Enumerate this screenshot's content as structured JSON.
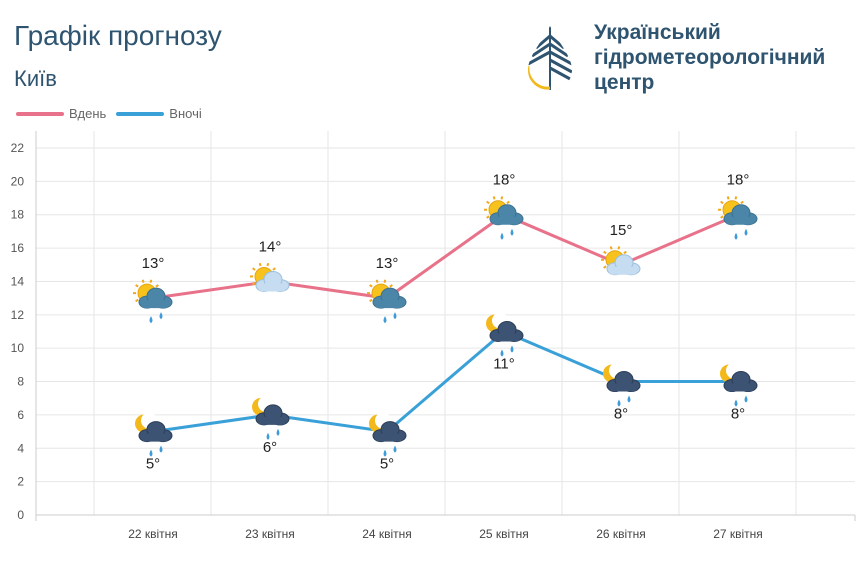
{
  "header": {
    "title": "Графік прогнозу",
    "city": "Київ",
    "org_line1": "Український",
    "org_line2": "гідрометеорологічний",
    "org_line3": "центр"
  },
  "colors": {
    "day": "#e8728a",
    "night": "#3aa0d8",
    "text": "#2f5470",
    "logo_yellow": "#f3b91c"
  },
  "chart_data": {
    "type": "line",
    "categories": [
      "22 квітня",
      "23 квітня",
      "24 квітня",
      "25 квітня",
      "26 квітня",
      "27 квітня"
    ],
    "series": [
      {
        "name": "Вдень",
        "values": [
          13,
          14,
          13,
          18,
          15,
          18
        ],
        "labels": [
          "13°",
          "14°",
          "13°",
          "18°",
          "15°",
          "18°"
        ],
        "icons": [
          "sun-cloud-rain",
          "sun-cloud",
          "sun-cloud-rain",
          "sun-cloud-rain",
          "sun-cloud",
          "sun-cloud-rain"
        ]
      },
      {
        "name": "Вночі",
        "values": [
          5,
          6,
          5,
          11,
          8,
          8
        ],
        "labels": [
          "5°",
          "6°",
          "5°",
          "11°",
          "8°",
          "8°"
        ],
        "icons": [
          "moon-cloud-rain",
          "moon-cloud-rain",
          "moon-cloud-rain",
          "moon-cloud-rain",
          "moon-cloud-rain",
          "moon-cloud-rain"
        ]
      }
    ],
    "ylim": [
      0,
      22
    ],
    "yticks": [
      "0",
      "2",
      "4",
      "6",
      "8",
      "10",
      "12",
      "14",
      "16",
      "18",
      "20",
      "22"
    ],
    "grid": true,
    "legend": "top-left"
  }
}
